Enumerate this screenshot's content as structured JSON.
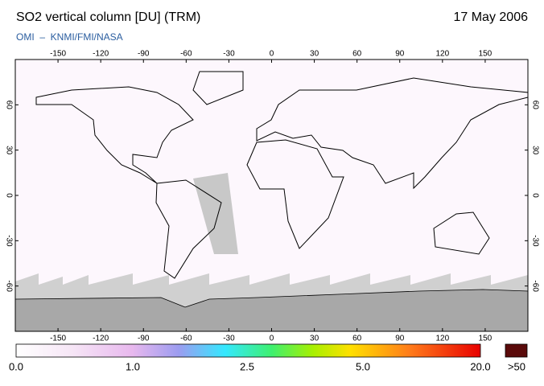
{
  "header": {
    "title": "SO2 vertical column [DU] (TRM)",
    "date": "17 May 2006",
    "subtitle": "OMI  –  KNMI/FMI/NASA"
  },
  "map": {
    "lonlim": [
      -180,
      180
    ],
    "latlim": [
      -90,
      90
    ],
    "lon_ticks": [
      -150,
      -120,
      -90,
      -60,
      -30,
      0,
      30,
      60,
      90,
      120,
      150
    ],
    "lat_ticks": [
      60,
      30,
      0,
      -30,
      -60
    ]
  },
  "colorbar": {
    "labels": [
      "0.0",
      "1.0",
      "2.5",
      "5.0",
      "20.0",
      ">50"
    ]
  }
}
